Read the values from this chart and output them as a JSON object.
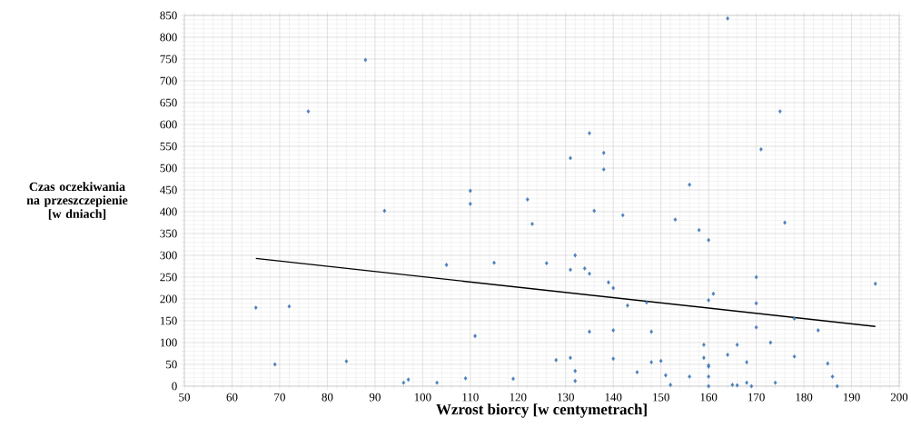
{
  "chart_data": {
    "type": "scatter",
    "xlabel": "Wzrost biorcy [w centymetrach]",
    "ylabel": "Czas oczekiwania na przeszczepienie [w dniach]",
    "xlim": [
      50,
      200
    ],
    "xticks": [
      50,
      60,
      70,
      80,
      90,
      100,
      110,
      120,
      130,
      140,
      150,
      160,
      170,
      180,
      190,
      200
    ],
    "ylim": [
      0,
      850
    ],
    "yticks": [
      0,
      50,
      100,
      150,
      200,
      250,
      300,
      350,
      400,
      450,
      500,
      550,
      600,
      650,
      700,
      750,
      800,
      850
    ],
    "grid": true,
    "series": [
      {
        "marker": "diamond",
        "color": "#4a7ebb",
        "x": [
          65,
          69,
          72,
          76,
          84,
          88,
          92,
          96,
          97,
          103,
          105,
          109,
          110,
          110,
          111,
          115,
          119,
          122,
          123,
          126,
          128,
          131,
          131,
          131,
          132,
          132,
          132,
          134,
          135,
          135,
          135,
          136,
          138,
          138,
          139,
          140,
          140,
          140,
          142,
          143,
          145,
          147,
          148,
          148,
          150,
          151,
          152,
          153,
          156,
          156,
          158,
          159,
          159,
          160,
          160,
          160,
          160,
          160,
          160,
          161,
          164,
          164,
          165,
          166,
          166,
          168,
          168,
          169,
          170,
          170,
          170,
          171,
          173,
          174,
          175,
          176,
          178,
          178,
          183,
          185,
          186,
          187,
          195
        ],
        "values": [
          180,
          50,
          183,
          630,
          57,
          748,
          402,
          8,
          15,
          8,
          278,
          18,
          448,
          418,
          115,
          283,
          17,
          428,
          372,
          282,
          60,
          523,
          267,
          65,
          300,
          35,
          12,
          270,
          580,
          258,
          125,
          402,
          535,
          497,
          238,
          225,
          128,
          63,
          392,
          185,
          32,
          192,
          125,
          55,
          58,
          25,
          3,
          382,
          462,
          22,
          358,
          95,
          65,
          335,
          197,
          48,
          45,
          22,
          0,
          212,
          843,
          72,
          3,
          95,
          2,
          55,
          8,
          0,
          250,
          190,
          135,
          543,
          100,
          8,
          630,
          375,
          155,
          68,
          128,
          52,
          22,
          0,
          235
        ]
      },
      {
        "type": "line",
        "marker": "none",
        "line_style": "solid",
        "color": "#000000",
        "x": [
          65,
          195
        ],
        "values": [
          293,
          137
        ]
      }
    ]
  }
}
